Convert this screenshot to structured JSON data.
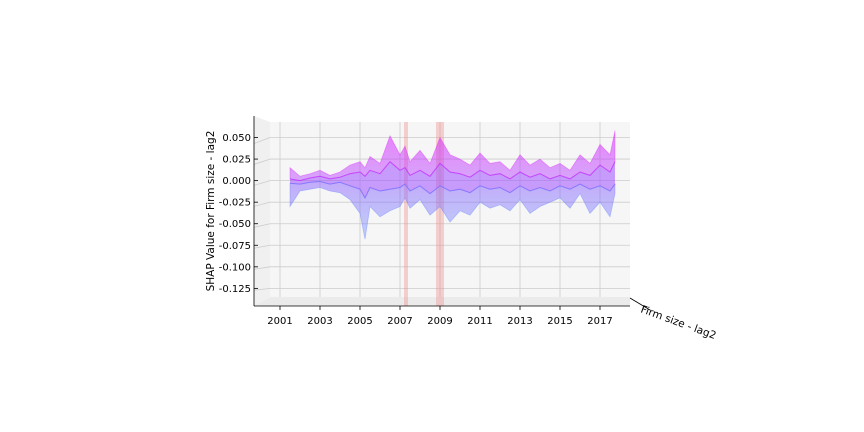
{
  "chart_data": {
    "type": "area",
    "title": "",
    "ylabel": "SHAP Value for Firm size - lag2",
    "xlabel": "",
    "depth_label": "Firm size - lag2",
    "x_ticks": [
      "2001",
      "2003",
      "2005",
      "2007",
      "2009",
      "2011",
      "2013",
      "2015",
      "2017"
    ],
    "y_ticks": [
      "0.050",
      "0.025",
      "0.000",
      "-0.025",
      "-0.050",
      "-0.075",
      "-0.100",
      "-0.125"
    ],
    "y_tick_values": [
      0.05,
      0.025,
      0.0,
      -0.025,
      -0.05,
      -0.075,
      -0.1,
      -0.125
    ],
    "xlim": [
      2000.5,
      2018.5
    ],
    "ylim": [
      -0.135,
      0.068
    ],
    "grid": true,
    "colors": {
      "high": "#e020ff",
      "low": "#6080ff",
      "band": "#f08080",
      "pane": "#f2f2f2",
      "grid": "#cccccc"
    },
    "vertical_bands": [
      {
        "x": [
          2007.2,
          2007.4
        ]
      },
      {
        "x": [
          2008.8,
          2009.2
        ]
      }
    ],
    "series": [
      {
        "values_x": [
          2001.5,
          2002,
          2002.5,
          2003,
          2003.5,
          2004,
          2004.5,
          2005,
          2005.25,
          2005.5,
          2006,
          2006.5,
          2007,
          2007.25,
          2007.5,
          2008,
          2008.5,
          2009,
          2009.5,
          2010,
          2010.5,
          2011,
          2011.5,
          2012,
          2012.5,
          2013,
          2013.5,
          2014,
          2014.5,
          2015,
          2015.5,
          2016,
          2016.5,
          2017,
          2017.5,
          2017.75
        ],
        "upper": [
          0.015,
          0.005,
          0.008,
          0.012,
          0.006,
          0.01,
          0.018,
          0.022,
          0.015,
          0.028,
          0.02,
          0.052,
          0.03,
          0.04,
          0.022,
          0.035,
          0.02,
          0.05,
          0.03,
          0.025,
          0.018,
          0.032,
          0.02,
          0.022,
          0.012,
          0.03,
          0.018,
          0.025,
          0.015,
          0.02,
          0.012,
          0.03,
          0.02,
          0.042,
          0.03,
          0.058
        ],
        "center_hi": [
          0.002,
          0.0,
          0.003,
          0.005,
          0.002,
          0.004,
          0.008,
          0.01,
          0.005,
          0.012,
          0.008,
          0.022,
          0.012,
          0.015,
          0.006,
          0.012,
          0.005,
          0.02,
          0.01,
          0.008,
          0.004,
          0.012,
          0.006,
          0.008,
          0.002,
          0.01,
          0.004,
          0.008,
          0.002,
          0.006,
          0.002,
          0.01,
          0.006,
          0.018,
          0.01,
          0.022
        ],
        "center_lo": [
          -0.003,
          -0.004,
          -0.002,
          -0.001,
          -0.004,
          -0.002,
          -0.006,
          -0.01,
          -0.02,
          -0.008,
          -0.012,
          -0.01,
          -0.008,
          -0.004,
          -0.012,
          -0.006,
          -0.015,
          -0.006,
          -0.012,
          -0.01,
          -0.014,
          -0.006,
          -0.01,
          -0.008,
          -0.014,
          -0.006,
          -0.012,
          -0.008,
          -0.012,
          -0.006,
          -0.01,
          -0.004,
          -0.01,
          -0.006,
          -0.012,
          -0.004
        ],
        "lower": [
          -0.03,
          -0.012,
          -0.01,
          -0.008,
          -0.012,
          -0.014,
          -0.022,
          -0.038,
          -0.068,
          -0.03,
          -0.042,
          -0.035,
          -0.03,
          -0.02,
          -0.032,
          -0.022,
          -0.04,
          -0.03,
          -0.048,
          -0.035,
          -0.04,
          -0.025,
          -0.032,
          -0.028,
          -0.035,
          -0.022,
          -0.038,
          -0.03,
          -0.025,
          -0.02,
          -0.032,
          -0.015,
          -0.038,
          -0.025,
          -0.042,
          -0.015
        ]
      }
    ]
  }
}
